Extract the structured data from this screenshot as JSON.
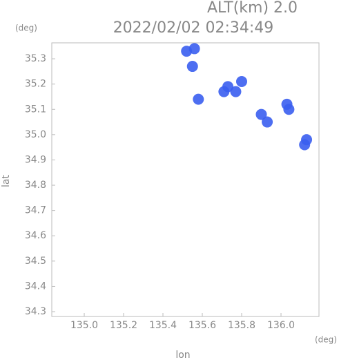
{
  "chart_data": {
    "type": "scatter",
    "title": "2022/02/02 02:34:49",
    "subtitle": "ALT(km) 2.0",
    "x_unit": "(deg)",
    "y_unit": "(deg)",
    "x_label": "lon",
    "y_label": "lat",
    "xlim": [
      134.835,
      136.193
    ],
    "ylim": [
      34.281,
      35.363
    ],
    "xticks": [
      {
        "value": 135.0,
        "label": "135.0"
      },
      135.2,
      135.4,
      135.6,
      135.8,
      {
        "value": 136.0,
        "label": "136.0"
      }
    ],
    "yticks": [
      34.3,
      34.4,
      34.5,
      34.6,
      34.7,
      34.8,
      34.9,
      {
        "value": 35.0,
        "label": "35.0"
      },
      35.1,
      35.2,
      35.3
    ],
    "series": [
      {
        "color": "#3a5ef0",
        "x": [
          135.52,
          135.56,
          135.55,
          135.71,
          135.73,
          135.77,
          135.8,
          135.9,
          135.93,
          136.03,
          136.04,
          136.12,
          136.13,
          135.58
        ],
        "y": [
          35.33,
          35.34,
          35.27,
          35.17,
          35.19,
          35.17,
          35.21,
          35.08,
          35.05,
          35.12,
          35.1,
          34.96,
          34.98,
          35.14
        ]
      }
    ]
  }
}
